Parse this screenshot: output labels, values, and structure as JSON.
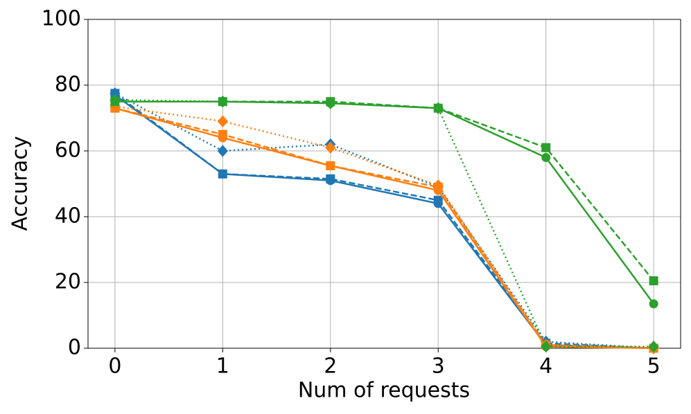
{
  "chart_data": {
    "type": "line",
    "x_label": "Num of requests",
    "y_label": "Accuracy",
    "x": [
      0,
      1,
      2,
      3,
      4,
      5
    ],
    "xlim": [
      -0.25,
      5.25
    ],
    "xticks": [
      0,
      1,
      2,
      3,
      4,
      5
    ],
    "ylim": [
      0,
      100
    ],
    "yticks": [
      0,
      20,
      40,
      60,
      80,
      100
    ],
    "grid": true,
    "series": [
      {
        "color": "#1f77b4",
        "marker": "circle",
        "dash": "solid",
        "values": [
          77,
          53,
          51,
          44,
          1,
          0
        ]
      },
      {
        "color": "#1f77b4",
        "marker": "square",
        "dash": "dashed",
        "values": [
          77.5,
          53,
          51.5,
          45,
          1.5,
          0
        ]
      },
      {
        "color": "#1f77b4",
        "marker": "diamond",
        "dash": "dotted",
        "values": [
          77.5,
          60,
          62,
          49,
          2,
          0
        ]
      },
      {
        "color": "#ff7f0e",
        "marker": "circle",
        "dash": "solid",
        "values": [
          73,
          64,
          55.5,
          48,
          0.5,
          0
        ]
      },
      {
        "color": "#ff7f0e",
        "marker": "square",
        "dash": "dashed",
        "values": [
          73,
          65,
          55.5,
          49,
          1,
          0
        ]
      },
      {
        "color": "#ff7f0e",
        "marker": "diamond",
        "dash": "dotted",
        "values": [
          73.5,
          69,
          61,
          49.5,
          1,
          0
        ]
      },
      {
        "color": "#2ca02c",
        "marker": "circle",
        "dash": "solid",
        "values": [
          75,
          75,
          74.5,
          73,
          58,
          13.5
        ]
      },
      {
        "color": "#2ca02c",
        "marker": "square",
        "dash": "dashed",
        "values": [
          75,
          75,
          75,
          73,
          61,
          20.5
        ]
      },
      {
        "color": "#2ca02c",
        "marker": "diamond",
        "dash": "dotted",
        "values": [
          75.5,
          75,
          74.5,
          73,
          0.5,
          0.5
        ]
      }
    ]
  }
}
